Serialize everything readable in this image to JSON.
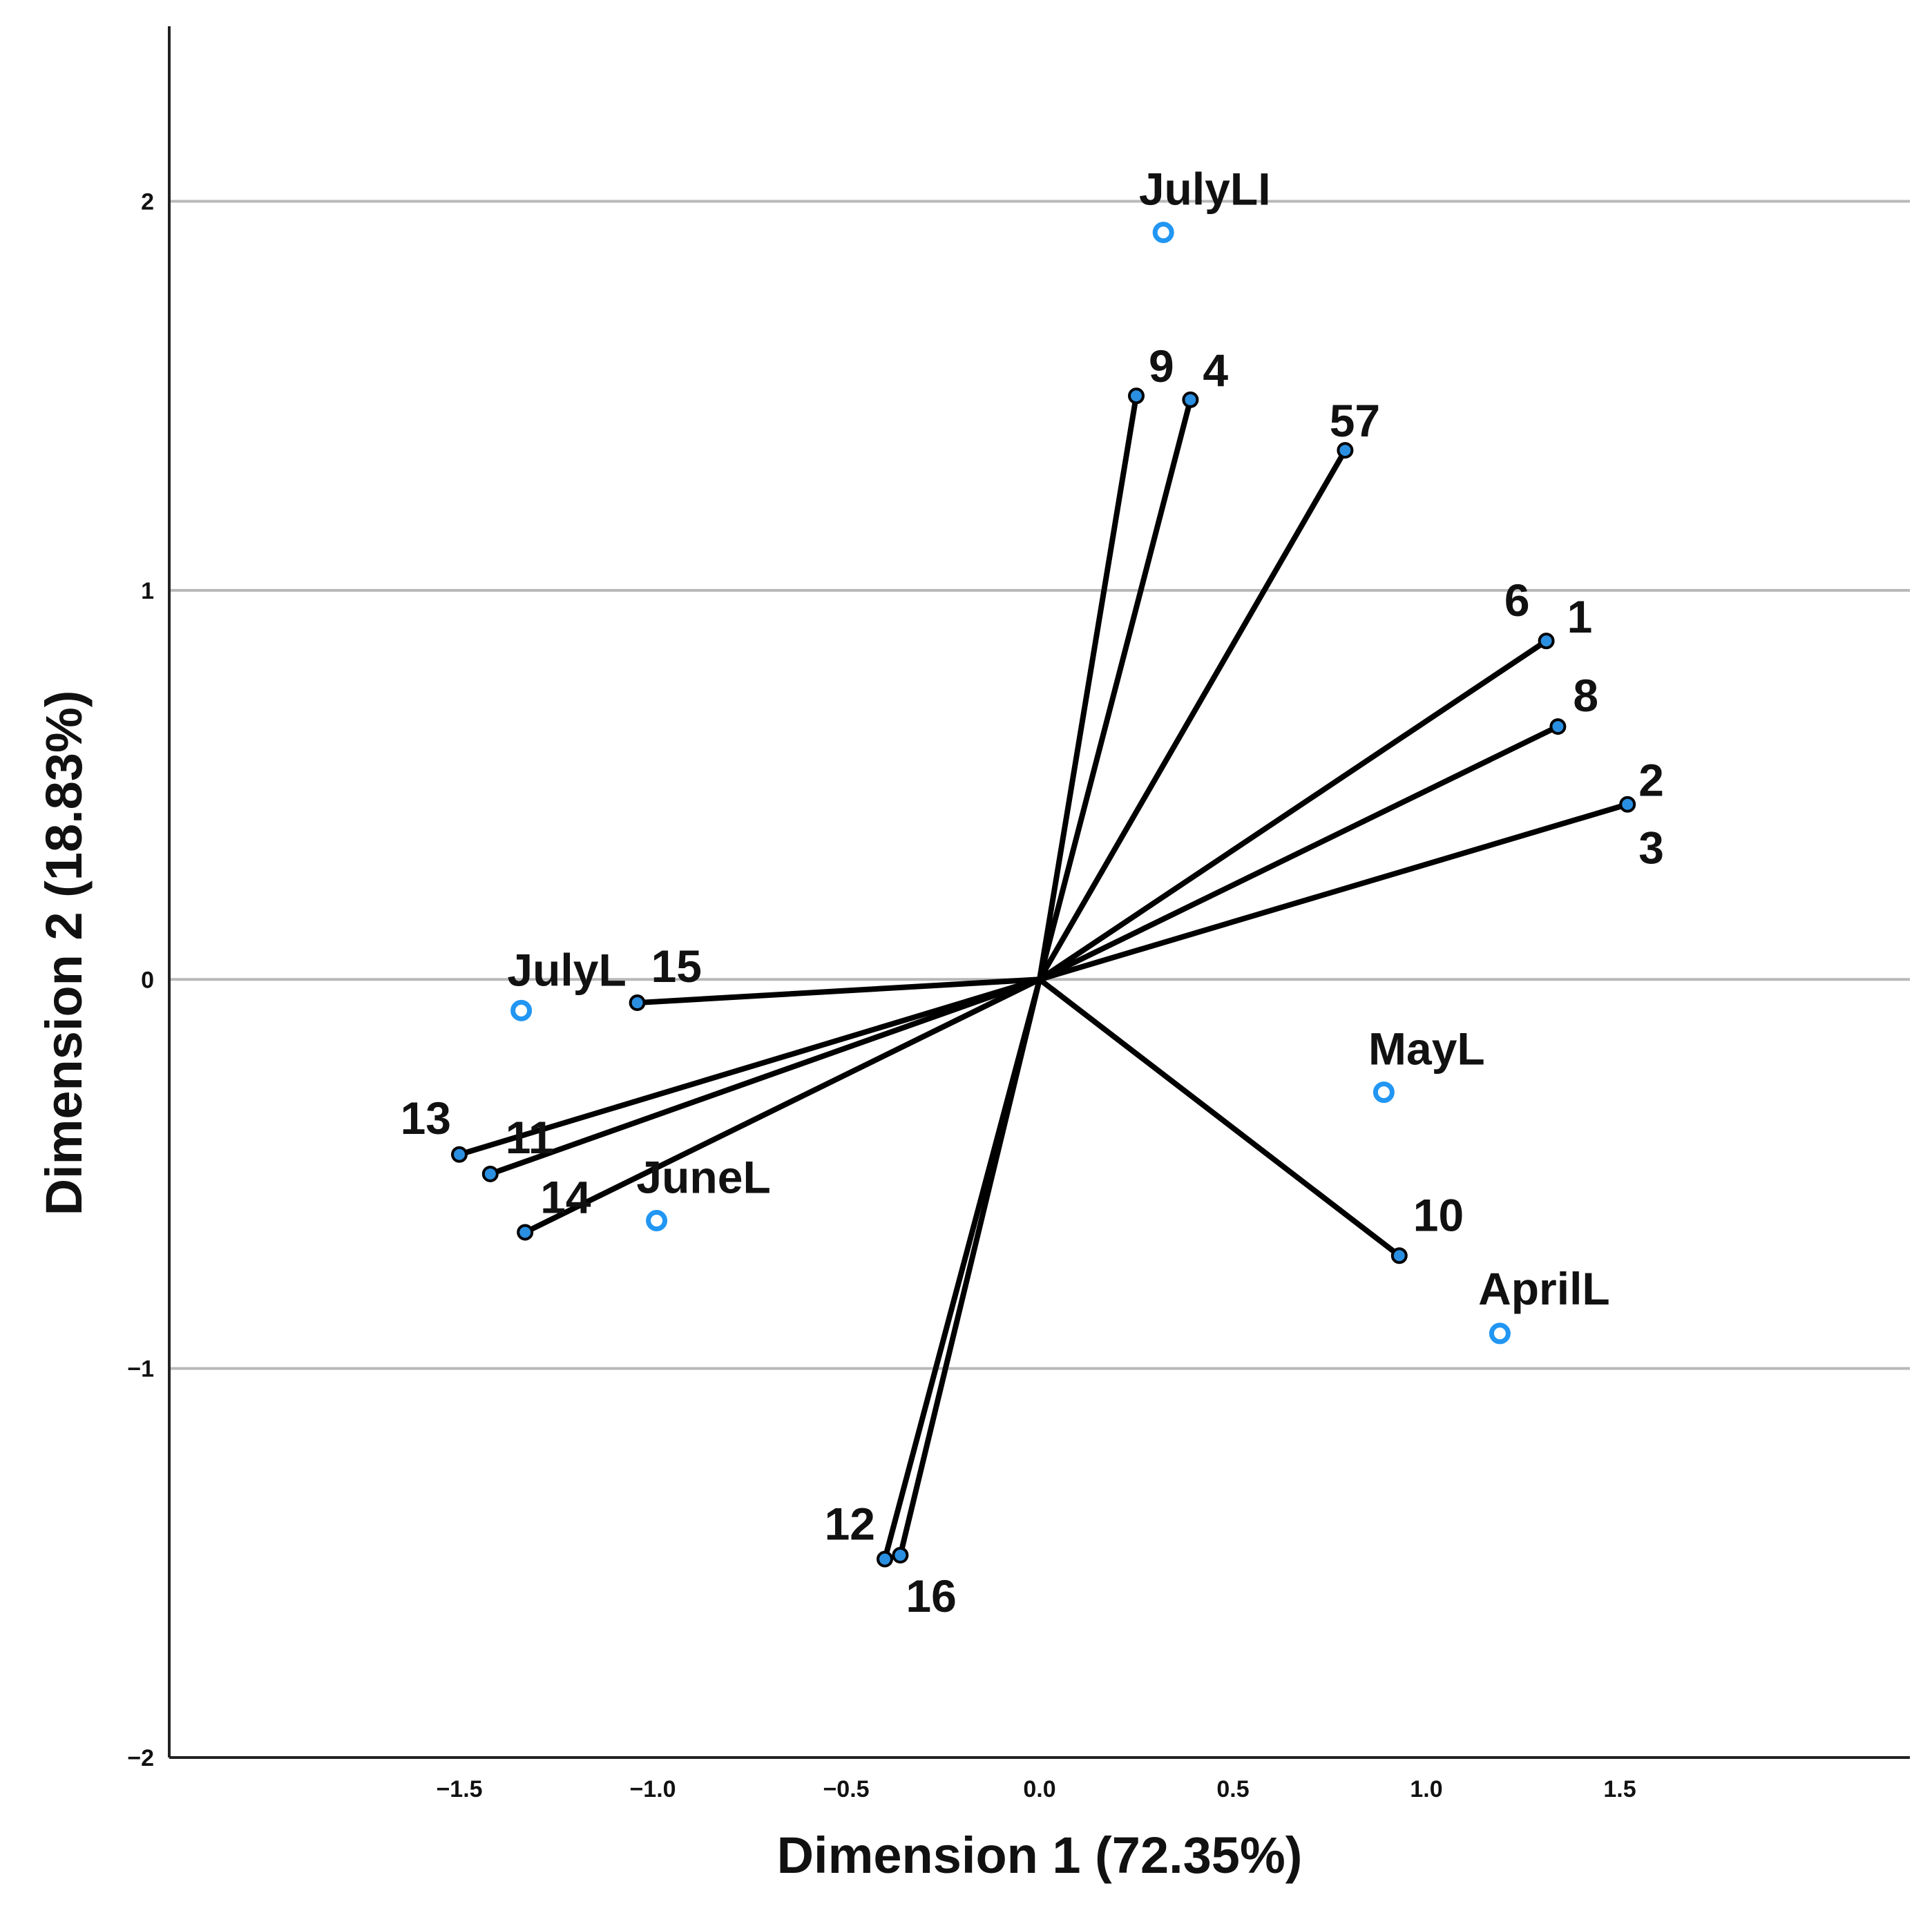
{
  "chart_data": {
    "type": "scatter",
    "subtype": "biplot",
    "title": "",
    "xlabel": "Dimension 1 (72.35%)",
    "ylabel": "Dimension 2 (18.83%)",
    "xlim": [
      -2.25,
      2.25
    ],
    "ylim": [
      -2.0,
      2.45
    ],
    "x_ticks": [
      -1.5,
      -1.0,
      -0.5,
      0.0,
      0.5,
      1.0,
      1.5
    ],
    "x_tick_labels": [
      "−1.5",
      "−1.0",
      "−0.5",
      "0.0",
      "0.5",
      "1.0",
      "1.5"
    ],
    "y_ticks": [
      2,
      1,
      0,
      -1,
      -2
    ],
    "y_tick_labels": [
      "2",
      "1",
      "0",
      "−1",
      "−2"
    ],
    "grid": "horizontal",
    "colors": {
      "vector": "#000000",
      "object_point": "#2a8fe0",
      "category_point": "#2196f3",
      "gridline": "#b8b8b8"
    },
    "vectors": [
      {
        "label": "1",
        "x": 1.31,
        "y": 0.87
      },
      {
        "label": "2",
        "x": 1.52,
        "y": 0.45
      },
      {
        "label": "3",
        "x": 1.52,
        "y": 0.45
      },
      {
        "label": "4",
        "x": 0.39,
        "y": 1.49
      },
      {
        "label": "57",
        "x": 0.79,
        "y": 1.36
      },
      {
        "label": "6",
        "x": 1.31,
        "y": 0.87
      },
      {
        "label": "8",
        "x": 1.34,
        "y": 0.65
      },
      {
        "label": "9",
        "x": 0.25,
        "y": 1.5
      },
      {
        "label": "10",
        "x": 0.93,
        "y": -0.71
      },
      {
        "label": "11",
        "x": -1.42,
        "y": -0.5
      },
      {
        "label": "12",
        "x": -0.4,
        "y": -1.49
      },
      {
        "label": "13",
        "x": -1.5,
        "y": -0.45
      },
      {
        "label": "14",
        "x": -1.33,
        "y": -0.65
      },
      {
        "label": "15",
        "x": -1.04,
        "y": -0.06
      },
      {
        "label": "16",
        "x": -0.36,
        "y": -1.48
      }
    ],
    "categories": [
      {
        "label": "JulyLI",
        "x": 0.32,
        "y": 1.92
      },
      {
        "label": "JulyL",
        "x": -1.34,
        "y": -0.08
      },
      {
        "label": "JuneL",
        "x": -0.99,
        "y": -0.62
      },
      {
        "label": "MayL",
        "x": 0.89,
        "y": -0.29
      },
      {
        "label": "AprilL",
        "x": 1.19,
        "y": -0.91
      }
    ]
  }
}
